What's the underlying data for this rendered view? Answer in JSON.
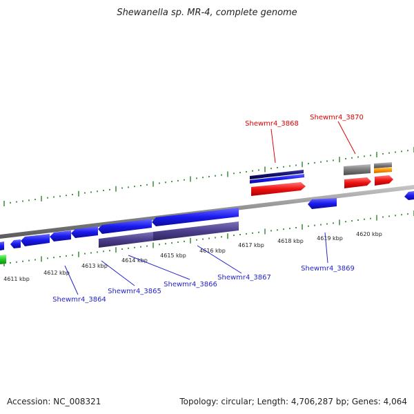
{
  "title": "Shewanella sp. MR-4, complete genome",
  "footer": {
    "accession": "Accession: NC_008321",
    "topology": "Topology: circular; Length: 4,706,287 bp; Genes: 4,064"
  },
  "scale": {
    "unit": "kbp",
    "bottom_ticks": [
      "4611 kbp",
      "4612 kbp",
      "4613 kbp",
      "4614 kbp",
      "4615 kbp",
      "4616 kbp",
      "4617 kbp",
      "4618 kbp",
      "4619 kbp",
      "4620 kbp"
    ]
  },
  "genes": [
    {
      "id": "Shewmr4_3864",
      "color": "#2222cc"
    },
    {
      "id": "Shewmr4_3865",
      "color": "#2222cc"
    },
    {
      "id": "Shewmr4_3866",
      "color": "#2222cc"
    },
    {
      "id": "Shewmr4_3867",
      "color": "#2222cc"
    },
    {
      "id": "Shewmr4_3868",
      "color": "#dd0000"
    },
    {
      "id": "Shewmr4_3869",
      "color": "#2222cc"
    },
    {
      "id": "Shewmr4_3870",
      "color": "#dd0000"
    }
  ],
  "colors": {
    "blue": "#1a1aee",
    "purple": "#4b3f8c",
    "red": "#ee1111",
    "gray": "#707070",
    "orange": "#ff9900",
    "green": "#22cc22",
    "navy": "#101070",
    "tick": "#1a7a1a",
    "backbone": "#8a8a8a"
  }
}
